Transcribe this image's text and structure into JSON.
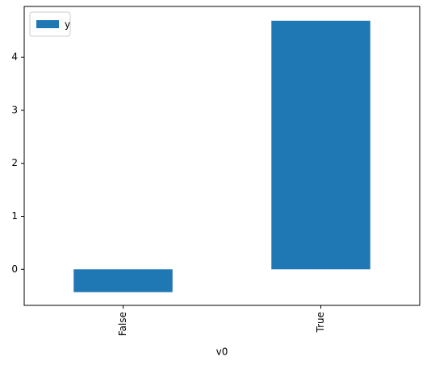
{
  "chart_data": {
    "type": "bar",
    "categories": [
      "False",
      "True"
    ],
    "x_label": "v0",
    "series": [
      {
        "name": "y",
        "color": "#1f77b4",
        "values": [
          -0.43,
          4.69
        ]
      }
    ],
    "ylim": [
      -0.68,
      4.96
    ],
    "yticks": [
      0,
      1,
      2,
      3,
      4
    ],
    "legend": "upper left"
  }
}
